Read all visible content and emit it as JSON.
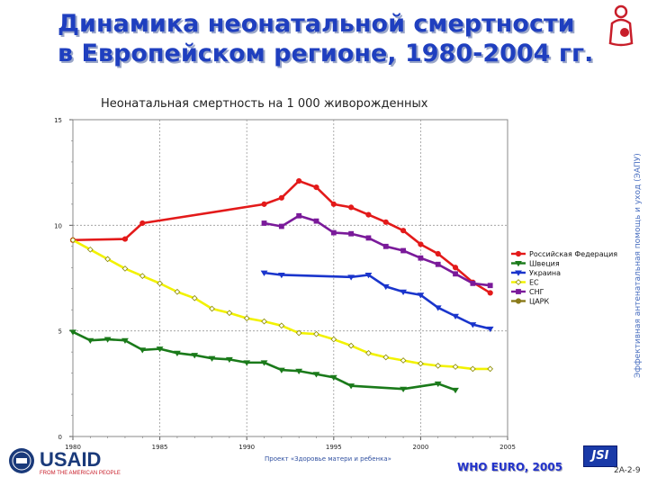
{
  "slide": {
    "title": "Динамика неонатальной смертности в Европейском регионе, 1980-2004 гг.",
    "sidebar_text": "Эффективная антенатальная помощь и уход (ЭАПУ)",
    "footer_project": "Проект «Здоровье матери и ребенка»",
    "footer_source": "WHO EURO, 2005",
    "slide_code": "2A-2-9",
    "usaid_logo_text": "USAID",
    "usaid_tagline": "FROM THE AMERICAN PEOPLE",
    "jsi_logo_text": "JSI"
  },
  "chart_data": {
    "type": "line",
    "title": "Неонатальная смертность на 1 000 живорожденных",
    "xlim": [
      1980,
      2005
    ],
    "ylim": [
      0,
      15
    ],
    "x_ticks": [
      1980,
      1985,
      1990,
      1995,
      2000,
      2005
    ],
    "y_ticks": [
      0,
      5,
      10,
      15
    ],
    "grid": true,
    "legend_position": "right",
    "series": [
      {
        "name": "Российская Федерация",
        "color": "#e31a1a",
        "marker": "circle",
        "points": [
          [
            1980,
            9.3
          ],
          [
            1983,
            9.35
          ],
          [
            1984,
            10.1
          ],
          [
            1991,
            11.0
          ],
          [
            1992,
            11.3
          ],
          [
            1993,
            12.1
          ],
          [
            1994,
            11.8
          ],
          [
            1995,
            11.0
          ],
          [
            1996,
            10.85
          ],
          [
            1997,
            10.5
          ],
          [
            1998,
            10.15
          ],
          [
            1999,
            9.75
          ],
          [
            2000,
            9.1
          ],
          [
            2001,
            8.65
          ],
          [
            2002,
            8.0
          ],
          [
            2003,
            7.3
          ],
          [
            2004,
            6.8
          ]
        ]
      },
      {
        "name": "Швеция",
        "color": "#1a7a1a",
        "marker": "triangle",
        "points": [
          [
            1980,
            4.95
          ],
          [
            1981,
            4.55
          ],
          [
            1982,
            4.6
          ],
          [
            1983,
            4.55
          ],
          [
            1984,
            4.1
          ],
          [
            1985,
            4.15
          ],
          [
            1986,
            3.95
          ],
          [
            1987,
            3.85
          ],
          [
            1988,
            3.7
          ],
          [
            1989,
            3.65
          ],
          [
            1990,
            3.5
          ],
          [
            1991,
            3.5
          ],
          [
            1992,
            3.15
          ],
          [
            1993,
            3.1
          ],
          [
            1994,
            2.95
          ],
          [
            1995,
            2.8
          ],
          [
            1996,
            2.4
          ],
          [
            1999,
            2.25
          ],
          [
            2001,
            2.5
          ],
          [
            2002,
            2.2
          ]
        ]
      },
      {
        "name": "Украина",
        "color": "#1a35cc",
        "marker": "triangle",
        "points": [
          [
            1991,
            7.75
          ],
          [
            1992,
            7.65
          ],
          [
            1996,
            7.55
          ],
          [
            1997,
            7.65
          ],
          [
            1998,
            7.1
          ],
          [
            1999,
            6.85
          ],
          [
            2000,
            6.7
          ],
          [
            2001,
            6.1
          ],
          [
            2002,
            5.7
          ],
          [
            2003,
            5.3
          ],
          [
            2004,
            5.1
          ]
        ]
      },
      {
        "name": "ЕС",
        "color": "#f2f200",
        "marker": "diamond",
        "points": [
          [
            1980,
            9.3
          ],
          [
            1981,
            8.85
          ],
          [
            1982,
            8.4
          ],
          [
            1983,
            7.95
          ],
          [
            1984,
            7.6
          ],
          [
            1985,
            7.25
          ],
          [
            1986,
            6.85
          ],
          [
            1987,
            6.55
          ],
          [
            1988,
            6.05
          ],
          [
            1989,
            5.85
          ],
          [
            1990,
            5.6
          ],
          [
            1991,
            5.45
          ],
          [
            1992,
            5.25
          ],
          [
            1993,
            4.9
          ],
          [
            1994,
            4.85
          ],
          [
            1995,
            4.6
          ],
          [
            1996,
            4.3
          ],
          [
            1997,
            3.95
          ],
          [
            1998,
            3.75
          ],
          [
            1999,
            3.6
          ],
          [
            2000,
            3.45
          ],
          [
            2001,
            3.35
          ],
          [
            2002,
            3.3
          ],
          [
            2003,
            3.2
          ],
          [
            2004,
            3.2
          ]
        ]
      },
      {
        "name": "СНГ",
        "color": "#7a1a9a",
        "marker": "square",
        "points": [
          [
            1991,
            10.1
          ],
          [
            1992,
            9.95
          ],
          [
            1993,
            10.45
          ],
          [
            1994,
            10.2
          ],
          [
            1995,
            9.65
          ],
          [
            1996,
            9.6
          ],
          [
            1997,
            9.4
          ],
          [
            1998,
            9.0
          ],
          [
            1999,
            8.8
          ],
          [
            2000,
            8.45
          ],
          [
            2001,
            8.15
          ],
          [
            2002,
            7.7
          ],
          [
            2003,
            7.25
          ],
          [
            2004,
            7.15
          ]
        ]
      },
      {
        "name": "ЦАРК",
        "color": "#8a7a1a",
        "marker": "circle",
        "points": []
      }
    ]
  }
}
